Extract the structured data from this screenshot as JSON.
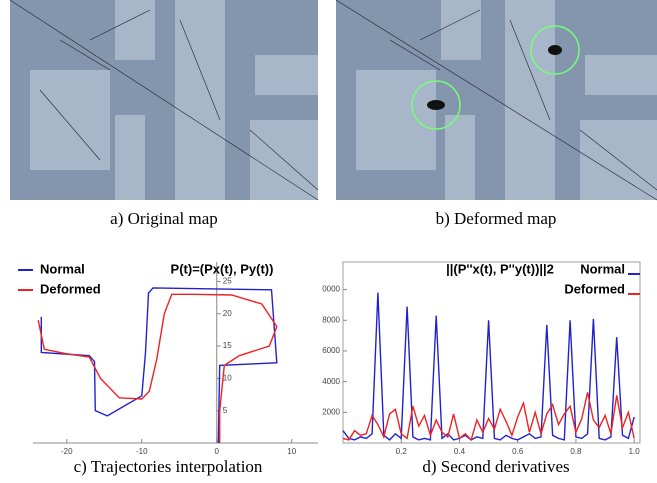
{
  "figure": {
    "captions": [
      "a) Original map",
      "b)  Deformed map",
      "c) Trajectories interpolation",
      "d) Second derivatives"
    ]
  },
  "chart_data": [
    {
      "type": "line",
      "title": "P(t)=(Px(t), Py(t))",
      "xlim": [
        -24.5,
        13.5
      ],
      "ylim": [
        0,
        28
      ],
      "xticks": [
        -20,
        -10,
        0,
        10
      ],
      "yticks": [
        5,
        10,
        15,
        20,
        25
      ],
      "series": [
        {
          "name": "Normal",
          "color": "#2222cc",
          "x": [
            -23.4,
            -23.4,
            -17,
            -16.3,
            -16.2,
            -14.6,
            -10,
            -9.5,
            -9.1,
            -8.5,
            7.3,
            8,
            0.4,
            0.2
          ],
          "y": [
            19.5,
            14,
            13.5,
            12.6,
            5,
            4.2,
            7.3,
            14,
            23.2,
            24,
            23.7,
            12.4,
            12,
            0
          ]
        },
        {
          "name": "Deformed",
          "color": "#ee2222",
          "x": [
            -23.8,
            -23,
            -20,
            -17,
            -15.5,
            -13,
            -10,
            -9,
            -8,
            -7,
            -6,
            -3,
            2,
            6,
            8,
            7,
            3,
            1,
            0.4,
            0.4
          ],
          "y": [
            19,
            14.5,
            13.8,
            13.3,
            10,
            7,
            6.8,
            8,
            13,
            20,
            23,
            23,
            22.9,
            21.5,
            18,
            15,
            13.5,
            12,
            5,
            0
          ]
        }
      ]
    },
    {
      "type": "line",
      "title": "||(P''x(t), P''y(t))||2",
      "xlim": [
        0,
        1.02
      ],
      "ylim": [
        0,
        11800
      ],
      "xticks": [
        0.2,
        0.4,
        0.6,
        0.8,
        {
          "value": 1,
          "label": "1.0"
        }
      ],
      "yticks": [
        2000,
        4000,
        6000,
        8000,
        {
          "value": 10000,
          "label": "0000"
        }
      ],
      "x": [
        0,
        0.02,
        0.04,
        0.06,
        0.08,
        0.1,
        0.12,
        0.14,
        0.16,
        0.18,
        0.2,
        0.22,
        0.24,
        0.26,
        0.28,
        0.3,
        0.32,
        0.34,
        0.36,
        0.38,
        0.4,
        0.42,
        0.44,
        0.46,
        0.48,
        0.5,
        0.52,
        0.54,
        0.56,
        0.58,
        0.6,
        0.62,
        0.64,
        0.66,
        0.68,
        0.7,
        0.72,
        0.74,
        0.76,
        0.78,
        0.8,
        0.82,
        0.84,
        0.86,
        0.88,
        0.9,
        0.92,
        0.94,
        0.96,
        0.98,
        1
      ],
      "series": [
        {
          "name": "Normal",
          "color": "#2222cc",
          "values": [
            800,
            300,
            200,
            400,
            300,
            600,
            9800,
            500,
            200,
            600,
            300,
            8900,
            400,
            200,
            300,
            200,
            8300,
            300,
            600,
            200,
            300,
            500,
            200,
            400,
            300,
            8000,
            300,
            200,
            500,
            300,
            200,
            400,
            600,
            300,
            400,
            7700,
            500,
            300,
            200,
            8000,
            400,
            300,
            600,
            8100,
            300,
            200,
            400,
            6900,
            500,
            300,
            1700
          ]
        },
        {
          "name": "Deformed",
          "color": "#ee2222",
          "values": [
            300,
            200,
            800,
            500,
            600,
            1800,
            1200,
            400,
            1900,
            2200,
            600,
            300,
            2400,
            1100,
            1800,
            500,
            1500,
            700,
            400,
            1900,
            300,
            600,
            200,
            1500,
            700,
            1600,
            900,
            2200,
            1400,
            500,
            1700,
            2600,
            700,
            2000,
            600,
            1900,
            2500,
            1200,
            1900,
            2400,
            700,
            1600,
            3300,
            1500,
            1000,
            1800,
            600,
            3100,
            1000,
            2000,
            300
          ]
        }
      ]
    }
  ]
}
